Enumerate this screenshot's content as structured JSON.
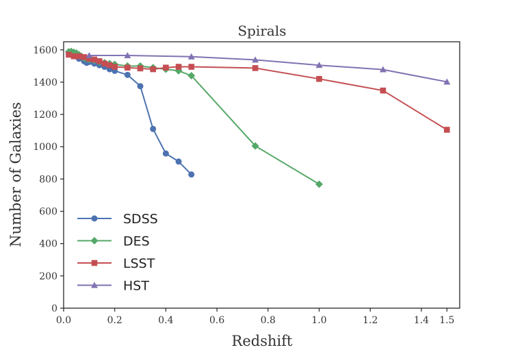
{
  "chart_data": {
    "type": "line",
    "title": "Spirals",
    "xlabel": "Redshift",
    "ylabel": "Number of Galaxies",
    "xlim": [
      0,
      1.55
    ],
    "ylim": [
      0,
      1650
    ],
    "x_ticks": [
      "0.0",
      "0.2",
      "0.4",
      "0.6",
      "0.8",
      "1.0",
      "1.2",
      "1.4",
      "1.5"
    ],
    "y_ticks": [
      "0",
      "200",
      "400",
      "600",
      "800",
      "1000",
      "1200",
      "1400",
      "1600"
    ],
    "grid": false,
    "legend_position": "lower-left",
    "series": [
      {
        "name": "SDSS",
        "color": "#4c72b0",
        "marker": "circle",
        "points": [
          [
            0.02,
            1575
          ],
          [
            0.04,
            1565
          ],
          [
            0.06,
            1545
          ],
          [
            0.08,
            1530
          ],
          [
            0.09,
            1520
          ],
          [
            0.1,
            1525
          ],
          [
            0.12,
            1515
          ],
          [
            0.14,
            1505
          ],
          [
            0.16,
            1495
          ],
          [
            0.18,
            1480
          ],
          [
            0.2,
            1470
          ],
          [
            0.25,
            1445
          ],
          [
            0.3,
            1375
          ],
          [
            0.35,
            1110
          ],
          [
            0.4,
            958
          ],
          [
            0.45,
            908
          ],
          [
            0.5,
            828
          ]
        ]
      },
      {
        "name": "DES",
        "color": "#55a868",
        "marker": "diamond",
        "points": [
          [
            0.02,
            1588
          ],
          [
            0.03,
            1590
          ],
          [
            0.04,
            1585
          ],
          [
            0.05,
            1580
          ],
          [
            0.06,
            1570
          ],
          [
            0.07,
            1560
          ],
          [
            0.08,
            1550
          ],
          [
            0.09,
            1545
          ],
          [
            0.1,
            1540
          ],
          [
            0.12,
            1535
          ],
          [
            0.14,
            1525
          ],
          [
            0.16,
            1520
          ],
          [
            0.18,
            1515
          ],
          [
            0.2,
            1510
          ],
          [
            0.25,
            1500
          ],
          [
            0.3,
            1500
          ],
          [
            0.35,
            1490
          ],
          [
            0.4,
            1480
          ],
          [
            0.45,
            1470
          ],
          [
            0.5,
            1440
          ],
          [
            0.75,
            1005
          ],
          [
            1.0,
            768
          ]
        ]
      },
      {
        "name": "LSST",
        "color": "#c44e52",
        "marker": "square",
        "points": [
          [
            0.02,
            1570
          ],
          [
            0.04,
            1560
          ],
          [
            0.06,
            1560
          ],
          [
            0.08,
            1555
          ],
          [
            0.1,
            1545
          ],
          [
            0.12,
            1540
          ],
          [
            0.14,
            1530
          ],
          [
            0.16,
            1515
          ],
          [
            0.18,
            1505
          ],
          [
            0.2,
            1495
          ],
          [
            0.25,
            1490
          ],
          [
            0.3,
            1485
          ],
          [
            0.35,
            1480
          ],
          [
            0.4,
            1490
          ],
          [
            0.45,
            1495
          ],
          [
            0.5,
            1495
          ],
          [
            0.75,
            1487
          ],
          [
            1.0,
            1420
          ],
          [
            1.25,
            1348
          ],
          [
            1.5,
            1105
          ]
        ]
      },
      {
        "name": "HST",
        "color": "#8172b2",
        "marker": "triangle",
        "points": [
          [
            0.1,
            1565
          ],
          [
            0.25,
            1565
          ],
          [
            0.5,
            1558
          ],
          [
            0.75,
            1538
          ],
          [
            1.0,
            1505
          ],
          [
            1.25,
            1478
          ],
          [
            1.5,
            1402
          ]
        ]
      }
    ]
  }
}
